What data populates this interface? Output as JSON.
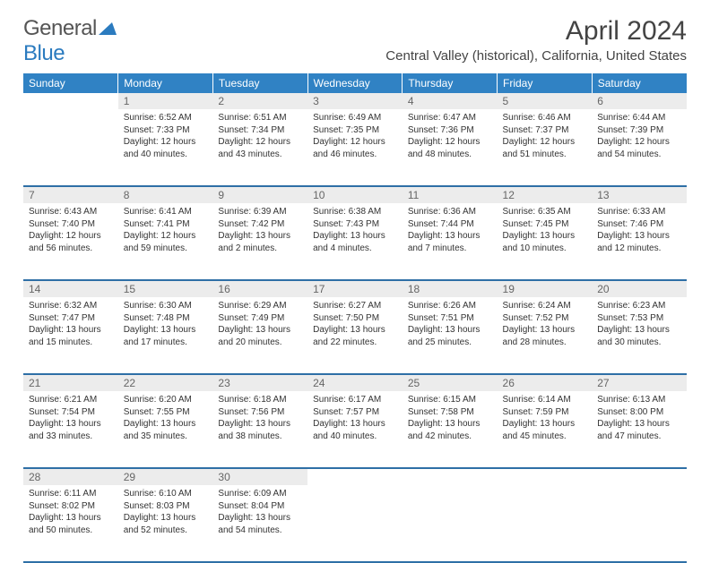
{
  "brand": {
    "part1": "General",
    "part2": "Blue"
  },
  "title": "April 2024",
  "location": "Central Valley (historical), California, United States",
  "weekdays": [
    "Sunday",
    "Monday",
    "Tuesday",
    "Wednesday",
    "Thursday",
    "Friday",
    "Saturday"
  ],
  "colors": {
    "header_bg": "#3082c4",
    "header_text": "#ffffff",
    "daynum_bg": "#ececec",
    "row_border": "#2e6fa6",
    "logo_blue": "#2b7bbf"
  },
  "weeks": [
    [
      null,
      {
        "n": "1",
        "sr": "6:52 AM",
        "ss": "7:33 PM",
        "dl": "12 hours and 40 minutes."
      },
      {
        "n": "2",
        "sr": "6:51 AM",
        "ss": "7:34 PM",
        "dl": "12 hours and 43 minutes."
      },
      {
        "n": "3",
        "sr": "6:49 AM",
        "ss": "7:35 PM",
        "dl": "12 hours and 46 minutes."
      },
      {
        "n": "4",
        "sr": "6:47 AM",
        "ss": "7:36 PM",
        "dl": "12 hours and 48 minutes."
      },
      {
        "n": "5",
        "sr": "6:46 AM",
        "ss": "7:37 PM",
        "dl": "12 hours and 51 minutes."
      },
      {
        "n": "6",
        "sr": "6:44 AM",
        "ss": "7:39 PM",
        "dl": "12 hours and 54 minutes."
      }
    ],
    [
      {
        "n": "7",
        "sr": "6:43 AM",
        "ss": "7:40 PM",
        "dl": "12 hours and 56 minutes."
      },
      {
        "n": "8",
        "sr": "6:41 AM",
        "ss": "7:41 PM",
        "dl": "12 hours and 59 minutes."
      },
      {
        "n": "9",
        "sr": "6:39 AM",
        "ss": "7:42 PM",
        "dl": "13 hours and 2 minutes."
      },
      {
        "n": "10",
        "sr": "6:38 AM",
        "ss": "7:43 PM",
        "dl": "13 hours and 4 minutes."
      },
      {
        "n": "11",
        "sr": "6:36 AM",
        "ss": "7:44 PM",
        "dl": "13 hours and 7 minutes."
      },
      {
        "n": "12",
        "sr": "6:35 AM",
        "ss": "7:45 PM",
        "dl": "13 hours and 10 minutes."
      },
      {
        "n": "13",
        "sr": "6:33 AM",
        "ss": "7:46 PM",
        "dl": "13 hours and 12 minutes."
      }
    ],
    [
      {
        "n": "14",
        "sr": "6:32 AM",
        "ss": "7:47 PM",
        "dl": "13 hours and 15 minutes."
      },
      {
        "n": "15",
        "sr": "6:30 AM",
        "ss": "7:48 PM",
        "dl": "13 hours and 17 minutes."
      },
      {
        "n": "16",
        "sr": "6:29 AM",
        "ss": "7:49 PM",
        "dl": "13 hours and 20 minutes."
      },
      {
        "n": "17",
        "sr": "6:27 AM",
        "ss": "7:50 PM",
        "dl": "13 hours and 22 minutes."
      },
      {
        "n": "18",
        "sr": "6:26 AM",
        "ss": "7:51 PM",
        "dl": "13 hours and 25 minutes."
      },
      {
        "n": "19",
        "sr": "6:24 AM",
        "ss": "7:52 PM",
        "dl": "13 hours and 28 minutes."
      },
      {
        "n": "20",
        "sr": "6:23 AM",
        "ss": "7:53 PM",
        "dl": "13 hours and 30 minutes."
      }
    ],
    [
      {
        "n": "21",
        "sr": "6:21 AM",
        "ss": "7:54 PM",
        "dl": "13 hours and 33 minutes."
      },
      {
        "n": "22",
        "sr": "6:20 AM",
        "ss": "7:55 PM",
        "dl": "13 hours and 35 minutes."
      },
      {
        "n": "23",
        "sr": "6:18 AM",
        "ss": "7:56 PM",
        "dl": "13 hours and 38 minutes."
      },
      {
        "n": "24",
        "sr": "6:17 AM",
        "ss": "7:57 PM",
        "dl": "13 hours and 40 minutes."
      },
      {
        "n": "25",
        "sr": "6:15 AM",
        "ss": "7:58 PM",
        "dl": "13 hours and 42 minutes."
      },
      {
        "n": "26",
        "sr": "6:14 AM",
        "ss": "7:59 PM",
        "dl": "13 hours and 45 minutes."
      },
      {
        "n": "27",
        "sr": "6:13 AM",
        "ss": "8:00 PM",
        "dl": "13 hours and 47 minutes."
      }
    ],
    [
      {
        "n": "28",
        "sr": "6:11 AM",
        "ss": "8:02 PM",
        "dl": "13 hours and 50 minutes."
      },
      {
        "n": "29",
        "sr": "6:10 AM",
        "ss": "8:03 PM",
        "dl": "13 hours and 52 minutes."
      },
      {
        "n": "30",
        "sr": "6:09 AM",
        "ss": "8:04 PM",
        "dl": "13 hours and 54 minutes."
      },
      null,
      null,
      null,
      null
    ]
  ],
  "labels": {
    "sunrise": "Sunrise: ",
    "sunset": "Sunset: ",
    "daylight": "Daylight: "
  }
}
